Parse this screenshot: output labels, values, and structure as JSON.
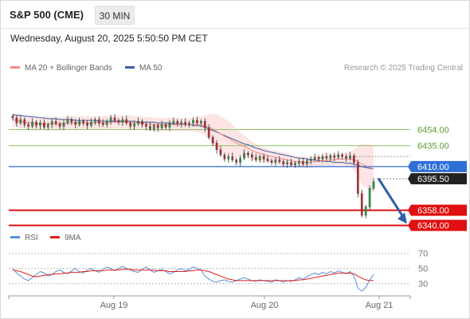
{
  "header": {
    "title": "S&P 500 (CME)",
    "timeframe": "30 MIN"
  },
  "datetime": "Wednesday, August 20, 2025 5:50:50 PM CET",
  "legend": {
    "ma20": {
      "label": "MA 20 + Bollinger Bands",
      "color": "#f08a8a"
    },
    "ma50": {
      "label": "MA 50",
      "color": "#3d5f9e"
    },
    "rsi": {
      "label": "RSI",
      "color": "#5b8fd8"
    },
    "ma9": {
      "label": "9MA",
      "color": "#e02020"
    }
  },
  "credit": "Research © 2025 Trading Central",
  "chart_data": [
    {
      "type": "candlestick",
      "x_ticks": [
        "Aug 19",
        "Aug 20",
        "Aug 21"
      ],
      "ylim": [
        6333,
        6502
      ],
      "levels": [
        {
          "label": "6454.00",
          "value": 6454.0,
          "kind": "resistance",
          "color": "#8fc46a",
          "text_color": "#5c9e2e"
        },
        {
          "label": "6435.00",
          "value": 6435.0,
          "kind": "resistance",
          "color": "#8fc46a",
          "text_color": "#5c9e2e"
        },
        {
          "label": "6410.00",
          "value": 6410.0,
          "kind": "pivot",
          "color": "#2f6fd8",
          "text_color": "#ffffff"
        },
        {
          "label": "6395.50",
          "value": 6395.5,
          "kind": "last",
          "color": "#222222",
          "text_color": "#ffffff"
        },
        {
          "label": "6358.00",
          "value": 6358.0,
          "kind": "support",
          "color": "#e01010",
          "text_color": "#ffffff"
        },
        {
          "label": "6340.00",
          "value": 6340.0,
          "kind": "support",
          "color": "#e01010",
          "text_color": "#ffffff"
        }
      ],
      "close": [
        6468,
        6462,
        6466,
        6460,
        6458,
        6463,
        6459,
        6462,
        6457,
        6460,
        6464,
        6461,
        6458,
        6462,
        6466,
        6463,
        6460,
        6464,
        6462,
        6459,
        6463,
        6466,
        6462,
        6460,
        6464,
        6468,
        6465,
        6463,
        6466,
        6462,
        6458,
        6461,
        6464,
        6460,
        6458,
        6455,
        6459,
        6456,
        6460,
        6457,
        6462,
        6464,
        6461,
        6463,
        6460,
        6462,
        6465,
        6462,
        6464,
        6456,
        6445,
        6438,
        6430,
        6424,
        6419,
        6422,
        6418,
        6415,
        6420,
        6426,
        6424,
        6421,
        6418,
        6422,
        6419,
        6417,
        6415,
        6418,
        6416,
        6413,
        6415,
        6412,
        6414,
        6416,
        6413,
        6417,
        6419,
        6421,
        6419,
        6422,
        6420,
        6423,
        6421,
        6424,
        6422,
        6420,
        6423,
        6415,
        6378,
        6352,
        6362,
        6384,
        6392
      ],
      "ma20": [
        6466,
        6465,
        6464,
        6463,
        6462,
        6462,
        6461,
        6461,
        6461,
        6461,
        6461,
        6461,
        6461,
        6461,
        6462,
        6462,
        6462,
        6462,
        6462,
        6462,
        6462,
        6462,
        6462,
        6462,
        6462,
        6463,
        6463,
        6463,
        6463,
        6463,
        6463,
        6462,
        6462,
        6462,
        6461,
        6461,
        6460,
        6460,
        6460,
        6460,
        6460,
        6460,
        6460,
        6460,
        6460,
        6460,
        6460,
        6460,
        6460,
        6459,
        6457,
        6455,
        6452,
        6449,
        6446,
        6444,
        6441,
        6438,
        6436,
        6434,
        6432,
        6429,
        6427,
        6426,
        6424,
        6423,
        6422,
        6421,
        6420,
        6419,
        6418,
        6417,
        6416,
        6416,
        6415,
        6415,
        6415,
        6416,
        6416,
        6417,
        6417,
        6418,
        6418,
        6419,
        6419,
        6419,
        6419,
        6418,
        6416,
        6413,
        6411,
        6409,
        6407
      ],
      "ma50": [
        6472,
        6471,
        6471,
        6470,
        6470,
        6469,
        6469,
        6468,
        6468,
        6467,
        6467,
        6467,
        6466,
        6466,
        6466,
        6466,
        6465,
        6465,
        6465,
        6465,
        6465,
        6465,
        6464,
        6464,
        6464,
        6464,
        6464,
        6464,
        6464,
        6464,
        6464,
        6464,
        6463,
        6463,
        6463,
        6463,
        6463,
        6462,
        6462,
        6462,
        6462,
        6461,
        6461,
        6461,
        6460,
        6460,
        6459,
        6459,
        6458,
        6457,
        6455,
        6453,
        6451,
        6449,
        6447,
        6445,
        6443,
        6441,
        6439,
        6437,
        6436,
        6434,
        6432,
        6431,
        6429,
        6428,
        6427,
        6426,
        6425,
        6424,
        6423,
        6422,
        6421,
        6420,
        6420,
        6419,
        6418,
        6418,
        6417,
        6417,
        6416,
        6416,
        6415,
        6415,
        6415,
        6414,
        6414,
        6413,
        6412,
        6410,
        6409,
        6408,
        6407
      ],
      "bb_width": [
        8,
        8,
        8,
        8,
        8,
        8,
        8,
        8,
        8,
        8,
        8,
        8,
        8,
        8,
        8,
        8,
        8,
        8,
        8,
        8,
        8,
        8,
        8,
        8,
        8,
        8,
        8,
        8,
        8,
        8,
        8,
        8,
        8,
        8,
        8,
        8,
        8,
        8,
        8,
        8,
        8,
        8,
        8,
        8,
        8,
        8,
        8,
        9,
        10,
        12,
        15,
        18,
        20,
        21,
        21,
        20,
        19,
        17,
        15,
        13,
        12,
        11,
        10,
        9,
        9,
        8,
        8,
        8,
        8,
        8,
        8,
        7,
        7,
        7,
        7,
        7,
        7,
        7,
        7,
        7,
        7,
        7,
        7,
        7,
        7,
        8,
        9,
        12,
        18,
        24,
        26,
        27,
        27
      ]
    },
    {
      "type": "line",
      "name": "RSI",
      "ylim": [
        17,
        76
      ],
      "y_ticks": [
        "70",
        "50",
        "30"
      ],
      "rsi": [
        50,
        44,
        40,
        36,
        34,
        38,
        42,
        46,
        44,
        40,
        42,
        46,
        48,
        45,
        43,
        47,
        50,
        46,
        44,
        48,
        50,
        47,
        45,
        49,
        52,
        50,
        47,
        50,
        53,
        50,
        48,
        46,
        45,
        49,
        52,
        48,
        45,
        47,
        49,
        46,
        43,
        45,
        48,
        50,
        47,
        49,
        52,
        50,
        48,
        40,
        36,
        33,
        32,
        34,
        35,
        33,
        32,
        34,
        36,
        38,
        36,
        34,
        33,
        35,
        34,
        33,
        32,
        35,
        34,
        32,
        34,
        33,
        35,
        38,
        36,
        39,
        42,
        44,
        42,
        45,
        43,
        46,
        44,
        47,
        45,
        43,
        46,
        40,
        24,
        20,
        25,
        35,
        42
      ],
      "ma9": [
        48,
        47,
        46,
        44,
        42,
        40,
        39,
        40,
        41,
        42,
        42,
        43,
        43,
        44,
        44,
        45,
        45,
        45,
        46,
        46,
        47,
        47,
        47,
        47,
        48,
        48,
        48,
        48,
        49,
        49,
        49,
        48,
        48,
        48,
        48,
        48,
        48,
        47,
        47,
        47,
        46,
        46,
        46,
        46,
        46,
        47,
        47,
        48,
        48,
        47,
        46,
        44,
        42,
        40,
        38,
        36,
        35,
        34,
        34,
        34,
        34,
        34,
        34,
        34,
        34,
        34,
        34,
        34,
        34,
        34,
        34,
        34,
        34,
        35,
        35,
        36,
        37,
        38,
        39,
        40,
        41,
        42,
        43,
        44,
        44,
        44,
        44,
        43,
        40,
        37,
        35,
        34,
        34
      ]
    }
  ]
}
